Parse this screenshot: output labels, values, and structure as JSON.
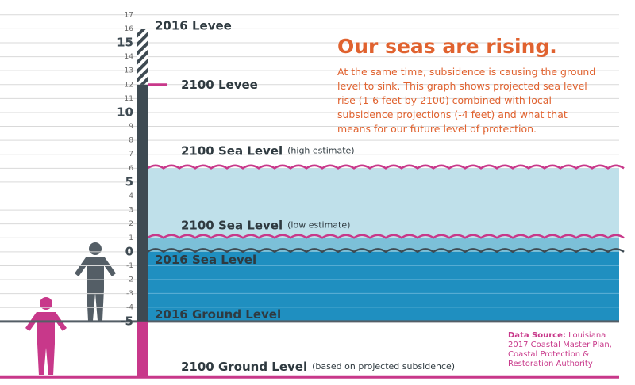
{
  "title": "Our seas are rising.",
  "description": "At the same time, subsidence is causing the ground level to sink. This graph shows projected sea level rise (1-6 feet by 2100) combined with local subsidence projections (-4 feet) and what that means for our future level of protection.",
  "scale": {
    "ylim": [
      -9.5,
      17.5
    ],
    "ticks": [
      -5,
      -4,
      -3,
      -2,
      -1,
      0,
      1,
      2,
      3,
      4,
      5,
      6,
      7,
      8,
      9,
      10,
      11,
      12,
      13,
      14,
      15,
      16,
      17
    ]
  },
  "levels": [
    {
      "label": "2016 Levee",
      "value": 16
    },
    {
      "label": "2100 Levee",
      "value": 12
    },
    {
      "label": "2100 Sea Level",
      "note": "(high estimate)",
      "value": 6
    },
    {
      "label": "2100 Sea Level",
      "note": "(low estimate)",
      "value": 1
    },
    {
      "label": "2016 Sea Level",
      "value": 0
    },
    {
      "label": "2016 Ground Level",
      "value": -5
    },
    {
      "label": "2100 Ground Level",
      "note": "(based on projected subsidence)",
      "value": -9
    }
  ],
  "source": {
    "label": "Data Source:",
    "text": "Louisiana 2017 Coastal Master Plan, Coastal Protection & Restoration Authority"
  }
}
